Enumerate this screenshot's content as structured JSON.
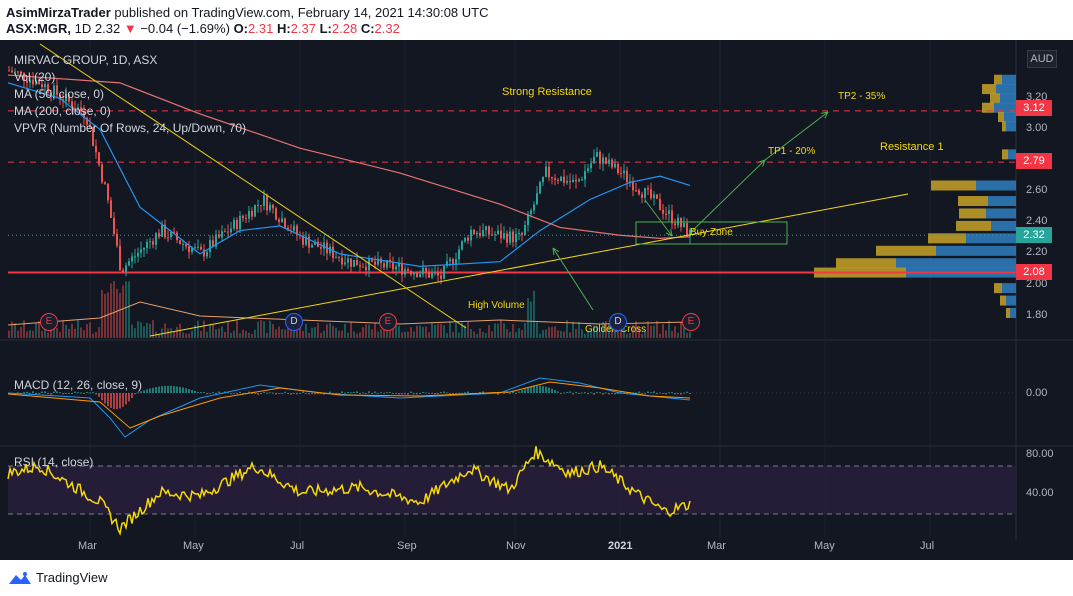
{
  "header": {
    "publisher": "AsimMirzaTrader",
    "published_text": "published on TradingView.com, February 14, 2021 14:30:08 UTC",
    "symbol": "ASX:MGR,",
    "interval": "1D",
    "last": "2.32",
    "change_arrow": "▼",
    "change": "−0.04 (−1.69%)",
    "o_label": "O:",
    "o_value": "2.31",
    "h_label": "H:",
    "h_value": "2.37",
    "l_label": "L:",
    "l_value": "2.28",
    "c_label": "C:",
    "c_value": "2.32"
  },
  "legend": {
    "title": "MIRVAC GROUP, 1D, ASX",
    "vol": "Vol (20)",
    "ma50": "MA (50, close, 0)",
    "ma200": "MA (200, close, 0)",
    "vpvr": "VPVR (Number Of Rows, 24, Up/Down, 70)",
    "macd": "MACD (12, 26, close, 9)",
    "rsi": "RSI (14, close)"
  },
  "annotations": {
    "strong_resistance": "Strong Resistance",
    "tp2": "TP2 - 35%",
    "tp1": "TP1 - 20%",
    "resistance1": "Resistance 1",
    "buy_zone": "Buy Zone",
    "high_volume": "High Volume",
    "golden_cross": "Golden Cross"
  },
  "events": {
    "earnings": "E",
    "dividend": "D"
  },
  "price_axis": {
    "currency": "AUD",
    "ticks": [
      "3.20",
      "3.00",
      "2.60",
      "2.40",
      "2.20",
      "2.00",
      "1.80"
    ],
    "tags": {
      "tp2": {
        "label": "3.12",
        "color": "#f23645"
      },
      "res1": {
        "label": "2.79",
        "color": "#f23645"
      },
      "last": {
        "label": "2.32",
        "color": "#26a69a"
      },
      "support": {
        "label": "2.08",
        "color": "#f23645"
      }
    }
  },
  "macd_axis": {
    "ticks": [
      "0.00"
    ]
  },
  "rsi_axis": {
    "ticks": [
      "80.00",
      "40.00"
    ]
  },
  "time_axis": [
    "Mar",
    "May",
    "Jul",
    "Sep",
    "Nov",
    "2021",
    "Mar",
    "May",
    "Jul"
  ],
  "colors": {
    "background": "#131722",
    "up": "#26a69a",
    "down": "#ef5350",
    "ma50": "#2196f3",
    "ma200": "#e57373",
    "trendline": "#f5d90a",
    "rsi": "#f5d90a",
    "rsi_band": "#2a1e3d",
    "buy_zone": "#4caf50"
  },
  "footer": {
    "brand": "TradingView"
  },
  "chart_data": {
    "type": "candlestick",
    "title": "MIRVAC GROUP, 1D, ASX",
    "x": [
      "2020-02",
      "2020-03",
      "2020-04",
      "2020-05",
      "2020-06",
      "2020-07",
      "2020-08",
      "2020-09",
      "2020-10",
      "2020-11",
      "2020-12",
      "2021-01",
      "2021-02"
    ],
    "close": [
      3.25,
      2.2,
      2.15,
      2.15,
      2.45,
      2.25,
      2.05,
      2.05,
      2.2,
      2.65,
      2.7,
      2.55,
      2.32
    ],
    "ylim": [
      1.7,
      3.3
    ],
    "levels": {
      "strong_resistance": 3.12,
      "resistance_1": 2.79,
      "support": 2.08,
      "last": 2.32
    },
    "rsi": [
      72,
      30,
      50,
      48,
      60,
      48,
      45,
      42,
      55,
      75,
      65,
      42,
      40
    ],
    "macd": [
      0.0,
      -0.25,
      -0.05,
      0.0,
      0.02,
      -0.01,
      -0.02,
      -0.01,
      0.0,
      0.06,
      0.03,
      -0.02,
      -0.03
    ]
  }
}
